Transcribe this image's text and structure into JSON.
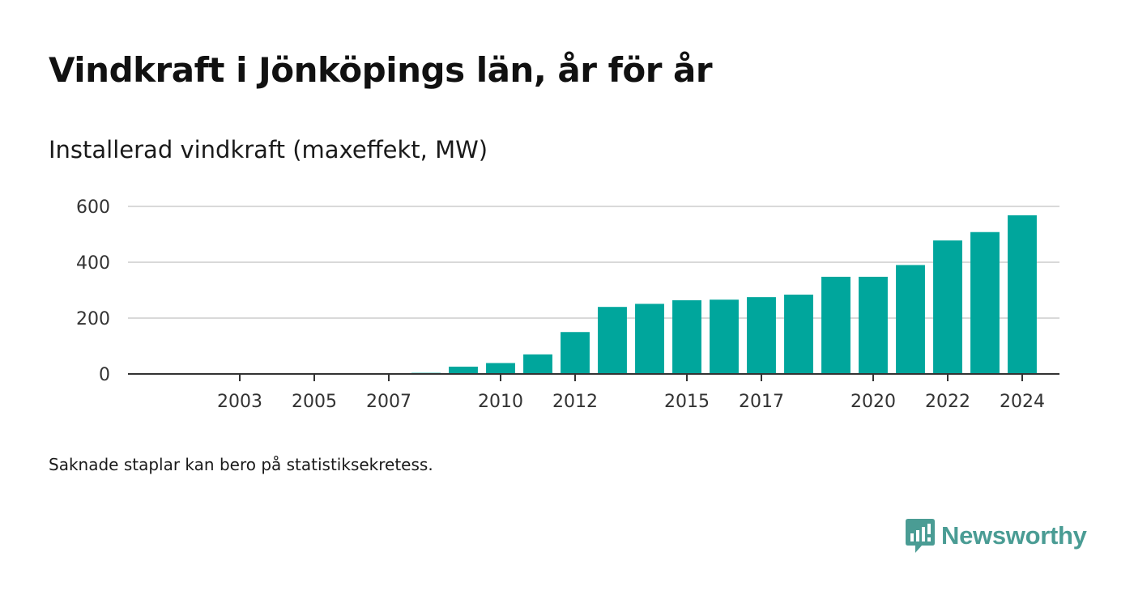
{
  "header": {
    "title": "Vindkraft i Jönköpings län, år för år",
    "subtitle": "Installerad vindkraft (maxeffekt, MW)"
  },
  "footer": {
    "note": "Saknade staplar kan bero på statistiksekretess.",
    "brand_name": "Newsworthy"
  },
  "colors": {
    "bar": "#00A69C",
    "brand": "#4A9C94",
    "grid": "#d9d9d9",
    "axis": "#333333"
  },
  "icons": {
    "brand_logo": "newsworthy-logo-icon"
  },
  "chart_data": {
    "type": "bar",
    "title": "Installerad vindkraft (maxeffekt, MW)",
    "xlabel": "",
    "ylabel": "",
    "x_range": [
      2000,
      2025
    ],
    "ylim": [
      0,
      600
    ],
    "y_ticks": [
      0,
      200,
      400,
      600
    ],
    "x_tick_labels": [
      "2003",
      "2005",
      "2007",
      "2010",
      "2012",
      "2015",
      "2017",
      "2020",
      "2022",
      "2024"
    ],
    "grid": true,
    "legend": "none",
    "categories": [
      2003,
      2004,
      2005,
      2006,
      2007,
      2008,
      2009,
      2010,
      2011,
      2012,
      2013,
      2014,
      2015,
      2016,
      2017,
      2018,
      2019,
      2020,
      2021,
      2022,
      2023,
      2024
    ],
    "values": [
      1,
      1,
      1,
      1,
      1,
      4,
      26,
      39,
      70,
      150,
      240,
      251,
      264,
      266,
      275,
      284,
      348,
      348,
      390,
      478,
      508,
      568
    ]
  }
}
